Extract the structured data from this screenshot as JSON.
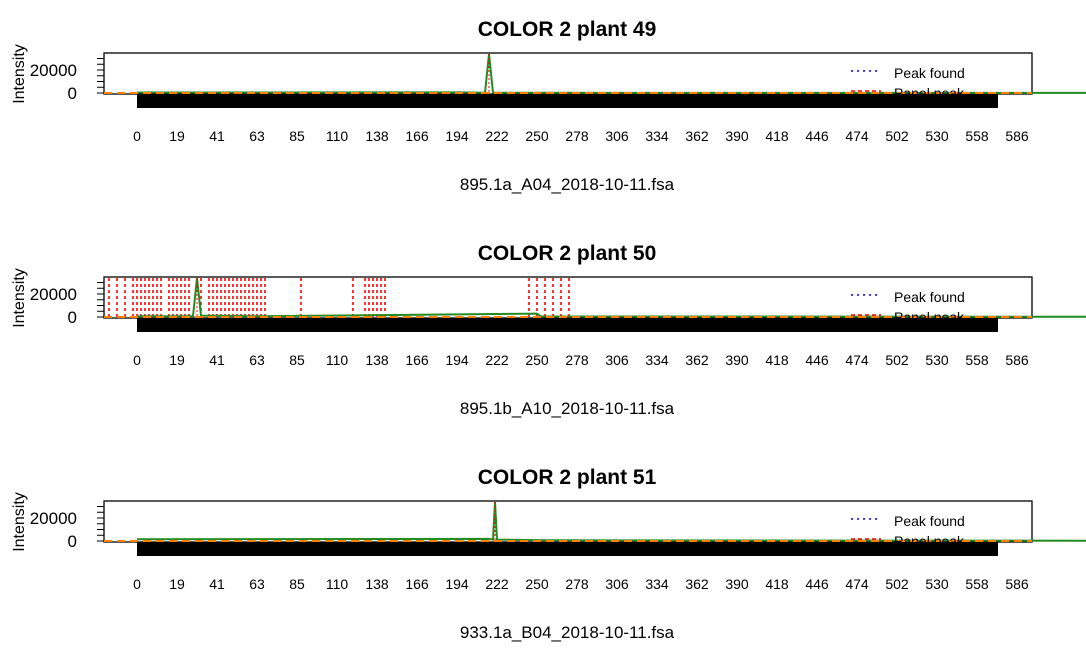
{
  "chart_data": [
    {
      "type": "line",
      "title": "COLOR 2 plant 49",
      "ylabel": "Intensity",
      "xlabel": "895.1a_A04_2018-10-11.fsa",
      "yticks": [
        "0",
        "20000"
      ],
      "xticks": [
        "0",
        "19",
        "41",
        "63",
        "85",
        "110",
        "138",
        "166",
        "194",
        "222",
        "250",
        "278",
        "306",
        "334",
        "362",
        "390",
        "418",
        "446",
        "474",
        "502",
        "530",
        "558",
        "586"
      ],
      "xlim": [
        0,
        29
      ],
      "ylim": [
        0,
        40000
      ],
      "legend": {
        "position": "top-right",
        "entries": [
          "Peak found",
          "Panel peak"
        ]
      },
      "colors": {
        "found": "#0000ff",
        "panel": "#ff0000",
        "signal": "#228b22",
        "trace": "#ff7f00"
      },
      "signal": [
        [
          0,
          400
        ],
        [
          8.1,
          500
        ],
        [
          8.7,
          300
        ],
        [
          8.8,
          40000
        ],
        [
          8.9,
          300
        ],
        [
          10.0,
          200
        ],
        [
          29,
          100
        ]
      ],
      "panel_peaks": [],
      "found_peaks": [
        8.8
      ]
    },
    {
      "type": "line",
      "title": "COLOR 2 plant 50",
      "ylabel": "Intensity",
      "xlabel": "895.1b_A10_2018-10-11.fsa",
      "yticks": [
        "0",
        "20000"
      ],
      "xticks": [
        "0",
        "19",
        "41",
        "63",
        "85",
        "110",
        "138",
        "166",
        "194",
        "222",
        "250",
        "278",
        "306",
        "334",
        "362",
        "390",
        "418",
        "446",
        "474",
        "502",
        "530",
        "558",
        "586"
      ],
      "xlim": [
        0,
        29
      ],
      "ylim": [
        0,
        40000
      ],
      "legend": {
        "position": "top-right",
        "entries": [
          "Peak found",
          "Panel peak"
        ]
      },
      "colors": {
        "found": "#0000ff",
        "panel": "#ff0000",
        "signal": "#228b22",
        "trace": "#ff7f00"
      },
      "signal": [
        [
          0,
          600
        ],
        [
          1.4,
          800
        ],
        [
          1.5,
          38000
        ],
        [
          1.6,
          1200
        ],
        [
          3.0,
          600
        ],
        [
          10.0,
          3000
        ],
        [
          10.1,
          500
        ],
        [
          29,
          100
        ]
      ],
      "panel_peaks": [
        -0.7,
        -0.5,
        -0.3,
        -0.1,
        0.0,
        0.1,
        0.2,
        0.3,
        0.4,
        0.5,
        0.6,
        0.8,
        0.9,
        1.0,
        1.1,
        1.2,
        1.3,
        1.6,
        1.8,
        1.9,
        2.0,
        2.1,
        2.2,
        2.3,
        2.4,
        2.5,
        2.6,
        2.7,
        2.8,
        2.9,
        3.0,
        3.1,
        3.2,
        4.1,
        5.4,
        5.7,
        5.8,
        5.9,
        6.0,
        6.1,
        6.2,
        9.8,
        10.0,
        10.2,
        10.4,
        10.6,
        10.8
      ],
      "found_peaks": [
        1.5
      ]
    },
    {
      "type": "line",
      "title": "COLOR 2 plant 51",
      "ylabel": "Intensity",
      "xlabel": "933.1a_B04_2018-10-11.fsa",
      "yticks": [
        "0",
        "20000"
      ],
      "xticks": [
        "0",
        "19",
        "41",
        "63",
        "85",
        "110",
        "138",
        "166",
        "194",
        "222",
        "250",
        "278",
        "306",
        "334",
        "362",
        "390",
        "418",
        "446",
        "474",
        "502",
        "530",
        "558",
        "586"
      ],
      "xlim": [
        0,
        29
      ],
      "ylim": [
        0,
        40000
      ],
      "legend": {
        "position": "top-right",
        "entries": [
          "Peak found",
          "Panel peak"
        ]
      },
      "colors": {
        "found": "#0000ff",
        "panel": "#ff0000",
        "signal": "#228b22",
        "trace": "#ff7f00"
      },
      "signal": [
        [
          0,
          1500
        ],
        [
          8.8,
          1800
        ],
        [
          8.9,
          1200
        ],
        [
          8.95,
          40000
        ],
        [
          9.0,
          1200
        ],
        [
          10.2,
          600
        ],
        [
          29,
          100
        ]
      ],
      "panel_peaks": [],
      "found_peaks": [
        8.95
      ]
    }
  ]
}
